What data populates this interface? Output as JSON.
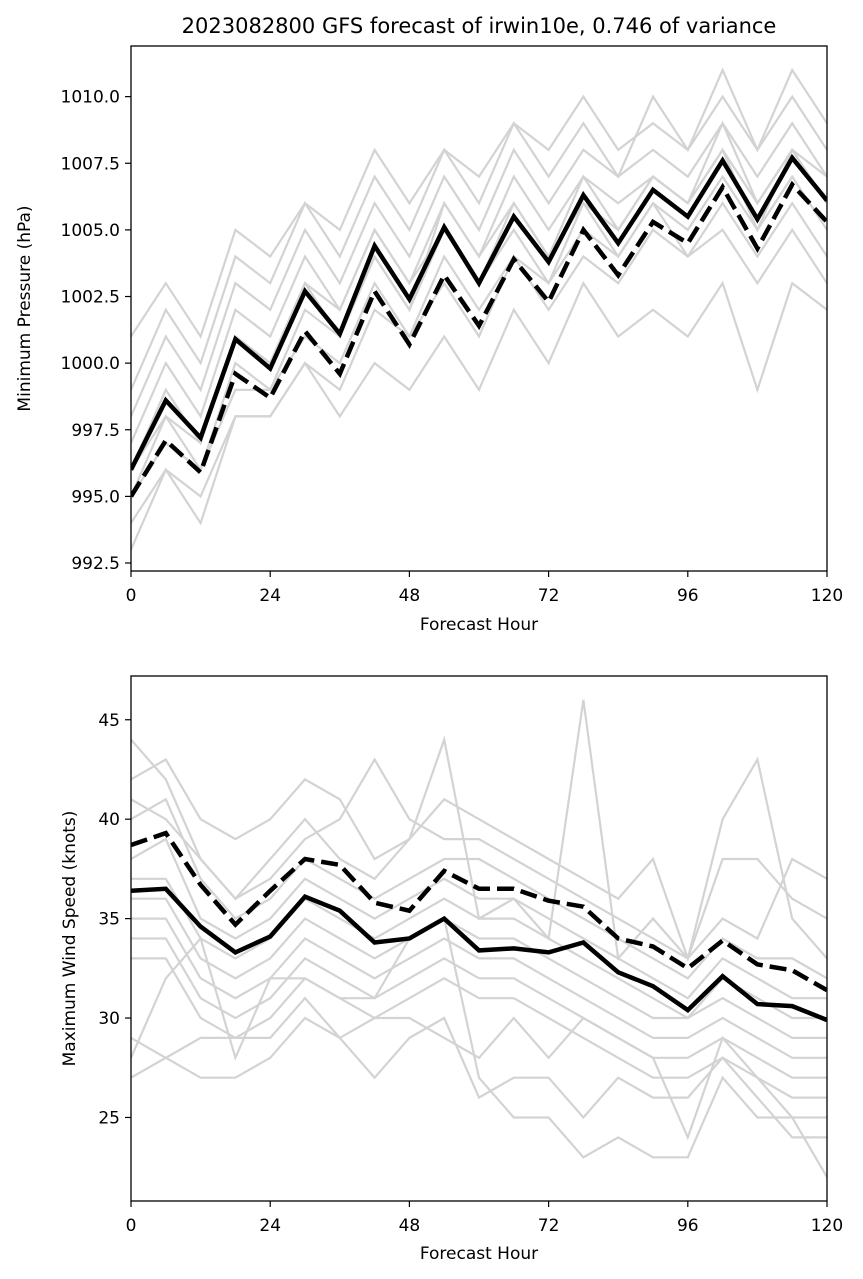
{
  "figure": {
    "title": "2023082800 GFS forecast of irwin10e, 0.746 of variance"
  },
  "chart_data": [
    {
      "type": "line",
      "title": "2023082800 GFS forecast of irwin10e, 0.746 of variance",
      "xlabel": "Forecast Hour",
      "ylabel": "Minimum Pressure (hPa)",
      "xlim": [
        0,
        120
      ],
      "ylim": [
        992.2,
        1011.9
      ],
      "xticks": [
        0,
        24,
        48,
        72,
        96,
        120
      ],
      "xtick_labels": [
        "0",
        "24",
        "48",
        "72",
        "96",
        "120"
      ],
      "yticks": [
        992.5,
        995.0,
        997.5,
        1000.0,
        1002.5,
        1005.0,
        1007.5,
        1010.0
      ],
      "ytick_labels": [
        "992.5",
        "995.0",
        "997.5",
        "1000.0",
        "1002.5",
        "1005.0",
        "1007.5",
        "1010.0"
      ],
      "grid": false,
      "x": [
        0,
        6,
        12,
        18,
        24,
        30,
        36,
        42,
        48,
        54,
        60,
        66,
        72,
        78,
        84,
        90,
        96,
        102,
        108,
        114,
        120
      ],
      "colors": {
        "ensemble": "#d3d3d3",
        "summary": "#000000"
      },
      "series": [
        {
          "style": "solid",
          "values": [
            996.0,
            998.6,
            997.2,
            1000.9,
            999.8,
            1002.7,
            1001.1,
            1004.4,
            1002.4,
            1005.1,
            1003.0,
            1005.5,
            1003.8,
            1006.3,
            1004.5,
            1006.5,
            1005.5,
            1007.6,
            1005.4,
            1007.7,
            1006.1
          ]
        },
        {
          "style": "dashed",
          "values": [
            995.0,
            997.1,
            995.9,
            999.6,
            998.7,
            1001.2,
            999.6,
            1002.7,
            1000.7,
            1003.3,
            1001.4,
            1003.9,
            1002.3,
            1005.0,
            1003.3,
            1005.3,
            1004.5,
            1006.6,
            1004.3,
            1006.7,
            1005.3
          ]
        },
        {
          "style": "ensemble",
          "values": [
            1001.0,
            1003.0,
            1001.0,
            1005.0,
            1004.0,
            1006.0,
            1005.0,
            1008.0,
            1006.0,
            1008.0,
            1007.0,
            1009.0,
            1008.0,
            1010.0,
            1008.0,
            1009.0,
            1008.0,
            1011.0,
            1008.0,
            1011.0,
            1009.0
          ]
        },
        {
          "style": "ensemble",
          "values": [
            999.0,
            1002.0,
            1000.0,
            1004.0,
            1003.0,
            1006.0,
            1004.0,
            1007.0,
            1005.0,
            1008.0,
            1006.0,
            1009.0,
            1007.0,
            1009.0,
            1007.0,
            1010.0,
            1008.0,
            1010.0,
            1008.0,
            1010.0,
            1008.0
          ]
        },
        {
          "style": "ensemble",
          "values": [
            998.0,
            1001.0,
            999.0,
            1003.0,
            1002.0,
            1005.0,
            1003.0,
            1006.0,
            1004.0,
            1007.0,
            1005.0,
            1008.0,
            1006.0,
            1008.0,
            1007.0,
            1008.0,
            1007.0,
            1009.0,
            1007.0,
            1009.0,
            1007.0
          ]
        },
        {
          "style": "ensemble",
          "values": [
            997.0,
            1000.0,
            998.0,
            1002.0,
            1001.0,
            1004.0,
            1002.0,
            1005.0,
            1003.0,
            1006.0,
            1004.0,
            1007.0,
            1005.0,
            1007.0,
            1006.0,
            1007.0,
            1006.0,
            1009.0,
            1006.0,
            1008.0,
            1007.0
          ]
        },
        {
          "style": "ensemble",
          "values": [
            996.0,
            999.0,
            997.0,
            1001.0,
            1000.0,
            1003.0,
            1002.0,
            1005.0,
            1003.0,
            1005.0,
            1003.0,
            1006.0,
            1004.0,
            1006.0,
            1005.0,
            1007.0,
            1006.0,
            1008.0,
            1005.0,
            1008.0,
            1006.0
          ]
        },
        {
          "style": "ensemble",
          "values": [
            995.0,
            998.0,
            996.0,
            1000.0,
            999.0,
            1002.0,
            1001.0,
            1004.0,
            1002.0,
            1005.0,
            1003.0,
            1005.0,
            1003.0,
            1006.0,
            1004.0,
            1006.0,
            1005.0,
            1007.0,
            1005.0,
            1007.0,
            1005.0
          ]
        },
        {
          "style": "ensemble",
          "values": [
            995.0,
            997.0,
            996.0,
            999.0,
            999.0,
            1001.0,
            1000.0,
            1003.0,
            1001.0,
            1004.0,
            1002.0,
            1004.0,
            1003.0,
            1005.0,
            1004.0,
            1006.0,
            1004.0,
            1006.0,
            1004.0,
            1006.0,
            1004.0
          ]
        },
        {
          "style": "ensemble",
          "values": [
            994.0,
            996.0,
            995.0,
            998.0,
            998.0,
            1000.0,
            999.0,
            1002.0,
            1001.0,
            1003.0,
            1001.0,
            1004.0,
            1002.0,
            1004.0,
            1003.0,
            1005.0,
            1004.0,
            1005.0,
            1003.0,
            1005.0,
            1003.0
          ]
        },
        {
          "style": "ensemble",
          "values": [
            993.0,
            996.0,
            994.0,
            998.0,
            998.0,
            1000.0,
            998.0,
            1000.0,
            999.0,
            1001.0,
            999.0,
            1002.0,
            1000.0,
            1003.0,
            1001.0,
            1002.0,
            1001.0,
            1003.0,
            999.0,
            1003.0,
            1002.0
          ]
        },
        {
          "style": "ensemble",
          "values": [
            996.0,
            998.0,
            997.0,
            1001.0,
            1000.0,
            1003.0,
            1001.0,
            1004.0,
            1002.0,
            1006.0,
            1004.0,
            1006.0,
            1004.0,
            1007.0,
            1005.0,
            1007.0,
            1006.0,
            1008.0,
            1006.0,
            1008.0,
            1006.0
          ]
        }
      ]
    },
    {
      "type": "line",
      "xlabel": "Forecast Hour",
      "ylabel": "Maximum Wind Speed (knots)",
      "xlim": [
        0,
        120
      ],
      "ylim": [
        20.8,
        47.2
      ],
      "xticks": [
        0,
        24,
        48,
        72,
        96,
        120
      ],
      "xtick_labels": [
        "0",
        "24",
        "48",
        "72",
        "96",
        "120"
      ],
      "yticks": [
        25,
        30,
        35,
        40,
        45
      ],
      "ytick_labels": [
        "25",
        "30",
        "35",
        "40",
        "45"
      ],
      "grid": false,
      "x": [
        0,
        6,
        12,
        18,
        24,
        30,
        36,
        42,
        48,
        54,
        60,
        66,
        72,
        78,
        84,
        90,
        96,
        102,
        108,
        114,
        120
      ],
      "colors": {
        "ensemble": "#d3d3d3",
        "summary": "#000000"
      },
      "series": [
        {
          "style": "solid",
          "values": [
            36.4,
            36.5,
            34.6,
            33.3,
            34.1,
            36.1,
            35.4,
            33.8,
            34.0,
            35.0,
            33.4,
            33.5,
            33.3,
            33.8,
            32.3,
            31.6,
            30.4,
            32.1,
            30.7,
            30.6,
            29.9
          ]
        },
        {
          "style": "dashed",
          "values": [
            38.7,
            39.3,
            36.7,
            34.7,
            36.4,
            38.0,
            37.7,
            35.8,
            35.4,
            37.4,
            36.5,
            36.5,
            35.9,
            35.6,
            34.0,
            33.6,
            32.5,
            33.9,
            32.7,
            32.4,
            31.4
          ]
        },
        {
          "style": "ensemble",
          "values": [
            44.0,
            42.0,
            38.0,
            36.0,
            38.0,
            40.0,
            38.0,
            37.0,
            39.0,
            44.0,
            35.0,
            36.0,
            34.0,
            46.0,
            33.0,
            35.0,
            33.0,
            40.0,
            43.0,
            35.0,
            33.0
          ]
        },
        {
          "style": "ensemble",
          "values": [
            42.0,
            43.0,
            40.0,
            39.0,
            40.0,
            42.0,
            41.0,
            38.0,
            39.0,
            41.0,
            40.0,
            39.0,
            38.0,
            37.0,
            36.0,
            38.0,
            33.0,
            38.0,
            38.0,
            36.0,
            35.0
          ]
        },
        {
          "style": "ensemble",
          "values": [
            41.0,
            40.0,
            38.0,
            36.0,
            37.0,
            39.0,
            40.0,
            43.0,
            40.0,
            39.0,
            39.0,
            38.0,
            37.0,
            36.0,
            35.0,
            34.0,
            33.0,
            35.0,
            34.0,
            38.0,
            37.0
          ]
        },
        {
          "style": "ensemble",
          "values": [
            40.0,
            41.0,
            37.0,
            35.0,
            36.0,
            38.0,
            37.0,
            36.0,
            37.0,
            38.0,
            38.0,
            37.0,
            36.0,
            35.0,
            34.0,
            33.0,
            32.0,
            34.0,
            33.0,
            33.0,
            32.0
          ]
        },
        {
          "style": "ensemble",
          "values": [
            38.0,
            39.0,
            35.0,
            34.0,
            35.0,
            37.0,
            36.0,
            35.0,
            36.0,
            37.0,
            36.0,
            36.0,
            35.0,
            34.0,
            33.0,
            32.0,
            31.0,
            33.0,
            32.0,
            31.0,
            31.0
          ]
        },
        {
          "style": "ensemble",
          "values": [
            37.0,
            37.0,
            34.0,
            33.0,
            34.0,
            36.0,
            35.0,
            34.0,
            35.0,
            36.0,
            35.0,
            35.0,
            34.0,
            33.0,
            32.0,
            31.0,
            30.0,
            32.0,
            31.0,
            30.0,
            30.0
          ]
        },
        {
          "style": "ensemble",
          "values": [
            36.0,
            36.0,
            33.0,
            32.0,
            33.0,
            35.0,
            34.0,
            33.0,
            34.0,
            35.0,
            34.0,
            34.0,
            33.0,
            32.0,
            31.0,
            30.0,
            30.0,
            31.0,
            30.0,
            29.0,
            29.0
          ]
        },
        {
          "style": "ensemble",
          "values": [
            35.0,
            35.0,
            32.0,
            31.0,
            32.0,
            34.0,
            33.0,
            32.0,
            33.0,
            34.0,
            33.0,
            33.0,
            32.0,
            31.0,
            30.0,
            29.0,
            29.0,
            30.0,
            29.0,
            28.0,
            28.0
          ]
        },
        {
          "style": "ensemble",
          "values": [
            34.0,
            34.0,
            31.0,
            30.0,
            31.0,
            33.0,
            32.0,
            31.0,
            32.0,
            33.0,
            32.0,
            32.0,
            31.0,
            30.0,
            29.0,
            28.0,
            28.0,
            29.0,
            28.0,
            27.0,
            27.0
          ]
        },
        {
          "style": "ensemble",
          "values": [
            33.0,
            33.0,
            30.0,
            29.0,
            30.0,
            32.0,
            31.0,
            30.0,
            31.0,
            32.0,
            31.0,
            31.0,
            30.0,
            29.0,
            28.0,
            27.0,
            27.0,
            28.0,
            27.0,
            26.0,
            26.0
          ]
        },
        {
          "style": "ensemble",
          "values": [
            29.0,
            28.0,
            29.0,
            29.0,
            29.0,
            31.0,
            29.0,
            30.0,
            30.0,
            29.0,
            28.0,
            30.0,
            28.0,
            30.0,
            29.0,
            28.0,
            24.0,
            29.0,
            27.0,
            25.0,
            25.0
          ]
        },
        {
          "style": "ensemble",
          "values": [
            27.0,
            28.0,
            27.0,
            27.0,
            28.0,
            30.0,
            29.0,
            27.0,
            29.0,
            30.0,
            26.0,
            27.0,
            27.0,
            25.0,
            27.0,
            26.0,
            26.0,
            28.0,
            26.0,
            24.0,
            24.0
          ]
        },
        {
          "style": "ensemble",
          "values": [
            28.0,
            32.0,
            34.0,
            28.0,
            32.0,
            32.0,
            31.0,
            31.0,
            34.0,
            35.0,
            27.0,
            25.0,
            25.0,
            23.0,
            24.0,
            23.0,
            23.0,
            27.0,
            25.0,
            25.0,
            22.0
          ]
        }
      ]
    }
  ]
}
